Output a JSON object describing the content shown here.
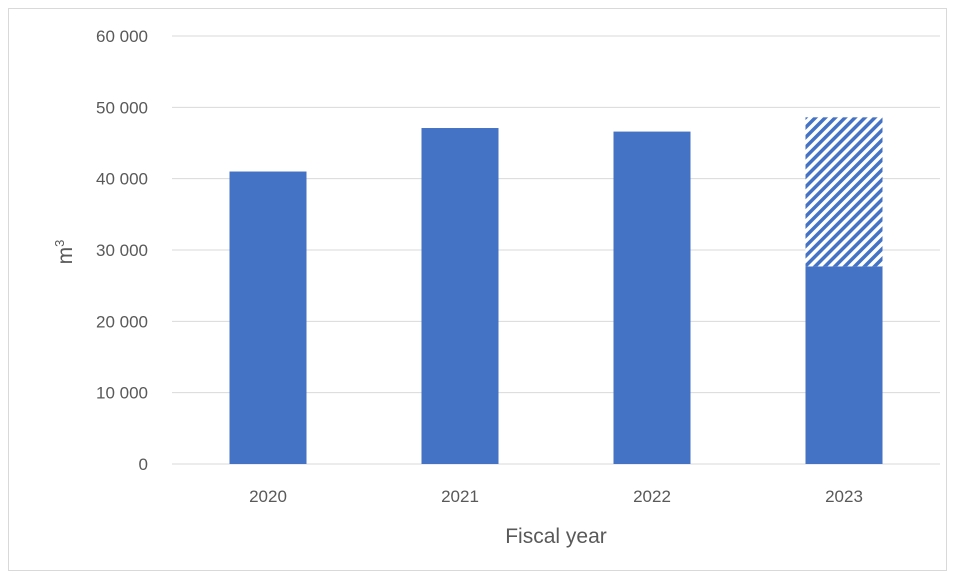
{
  "chart_data": {
    "type": "bar",
    "title": "",
    "xlabel": "Fiscal year",
    "ylabel": "m",
    "ylabel_superscript": "3",
    "categories": [
      "2020",
      "2021",
      "2022",
      "2023"
    ],
    "series": [
      {
        "values": [
          41000,
          47100,
          46600,
          27700
        ],
        "color": "#4472c4",
        "fill": "solid"
      },
      {
        "values": [
          0,
          0,
          0,
          20900
        ],
        "color": "#4472c4",
        "fill": "diagonal-hatch"
      }
    ],
    "ylim": [
      0,
      60000
    ],
    "yticks": [
      0,
      10000,
      20000,
      30000,
      40000,
      50000,
      60000
    ],
    "ytick_labels": [
      "0",
      "10 000",
      "20 000",
      "30 000",
      "40 000",
      "50 000",
      "60 000"
    ],
    "grid": true,
    "legend": "none"
  }
}
